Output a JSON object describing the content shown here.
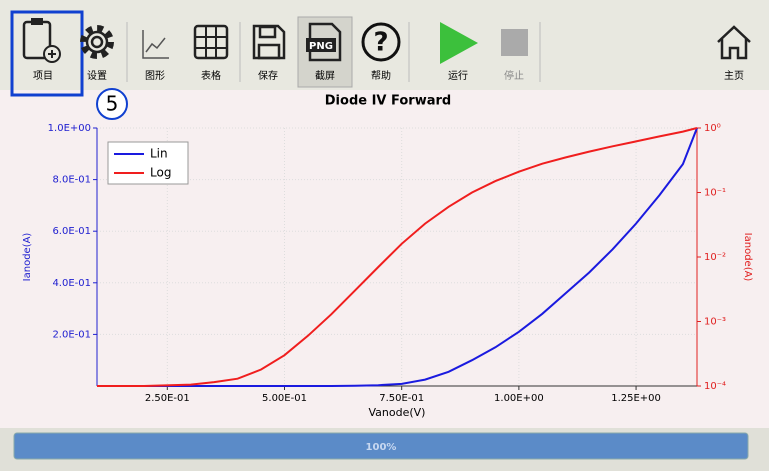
{
  "toolbar": {
    "buttons": [
      "项目",
      "设置",
      "图形",
      "表格",
      "保存",
      "截屏",
      "帮助",
      "运行",
      "停止",
      "主页"
    ]
  },
  "annotation": "5",
  "progress": {
    "label": "100%"
  },
  "chart_data": {
    "type": "line",
    "title": "Diode IV Forward",
    "xlabel": "Vanode(V)",
    "ylabel": "Ianode(A)",
    "y2label": "Ianode(A)",
    "x": [
      0.1,
      0.2,
      0.3,
      0.35,
      0.4,
      0.45,
      0.5,
      0.55,
      0.6,
      0.65,
      0.7,
      0.75,
      0.8,
      0.85,
      0.9,
      0.95,
      1.0,
      1.05,
      1.1,
      1.15,
      1.2,
      1.25,
      1.3,
      1.35,
      1.38
    ],
    "series": [
      {
        "name": "Lin",
        "color": "#1a1adf",
        "values": [
          0,
          0,
          0,
          0,
          0,
          0,
          0,
          0,
          0,
          0.001,
          0.003,
          0.008,
          0.025,
          0.055,
          0.1,
          0.15,
          0.21,
          0.28,
          0.36,
          0.44,
          0.53,
          0.63,
          0.74,
          0.86,
          1.0
        ]
      },
      {
        "name": "Log",
        "color": "#f01e1e",
        "axis": "y2",
        "values": [
          0.0001,
          0.0001,
          0.000105,
          0.000115,
          0.00013,
          0.00018,
          0.0003,
          0.0006,
          0.0013,
          0.003,
          0.007,
          0.016,
          0.033,
          0.06,
          0.1,
          0.15,
          0.21,
          0.28,
          0.35,
          0.43,
          0.52,
          0.62,
          0.74,
          0.88,
          1.0
        ]
      }
    ],
    "xlim": [
      0.1,
      1.38
    ],
    "xticks": [
      {
        "value": 0.25,
        "label": "2.50E-01"
      },
      {
        "value": 0.5,
        "label": "5.00E-01"
      },
      {
        "value": 0.75,
        "label": "7.50E-01"
      },
      {
        "value": 1.0,
        "label": "1.00E+00"
      },
      {
        "value": 1.25,
        "label": "1.25E+00"
      }
    ],
    "ylim": [
      0,
      1
    ],
    "yticks": [
      {
        "value": 0.2,
        "label": "2.0E-01"
      },
      {
        "value": 0.4,
        "label": "4.0E-01"
      },
      {
        "value": 0.6,
        "label": "6.0E-01"
      },
      {
        "value": 0.8,
        "label": "8.0E-01"
      },
      {
        "value": 1.0,
        "label": "1.0E+00"
      }
    ],
    "y2lim": [
      0.0001,
      1
    ],
    "y2log": true,
    "y2ticks": [
      {
        "value": 0.0001,
        "label": "10⁻⁴"
      },
      {
        "value": 0.001,
        "label": "10⁻³"
      },
      {
        "value": 0.01,
        "label": "10⁻²"
      },
      {
        "value": 0.1,
        "label": "10⁻¹"
      },
      {
        "value": 1,
        "label": "10⁰"
      }
    ],
    "grid": true,
    "legend": "upper left"
  }
}
